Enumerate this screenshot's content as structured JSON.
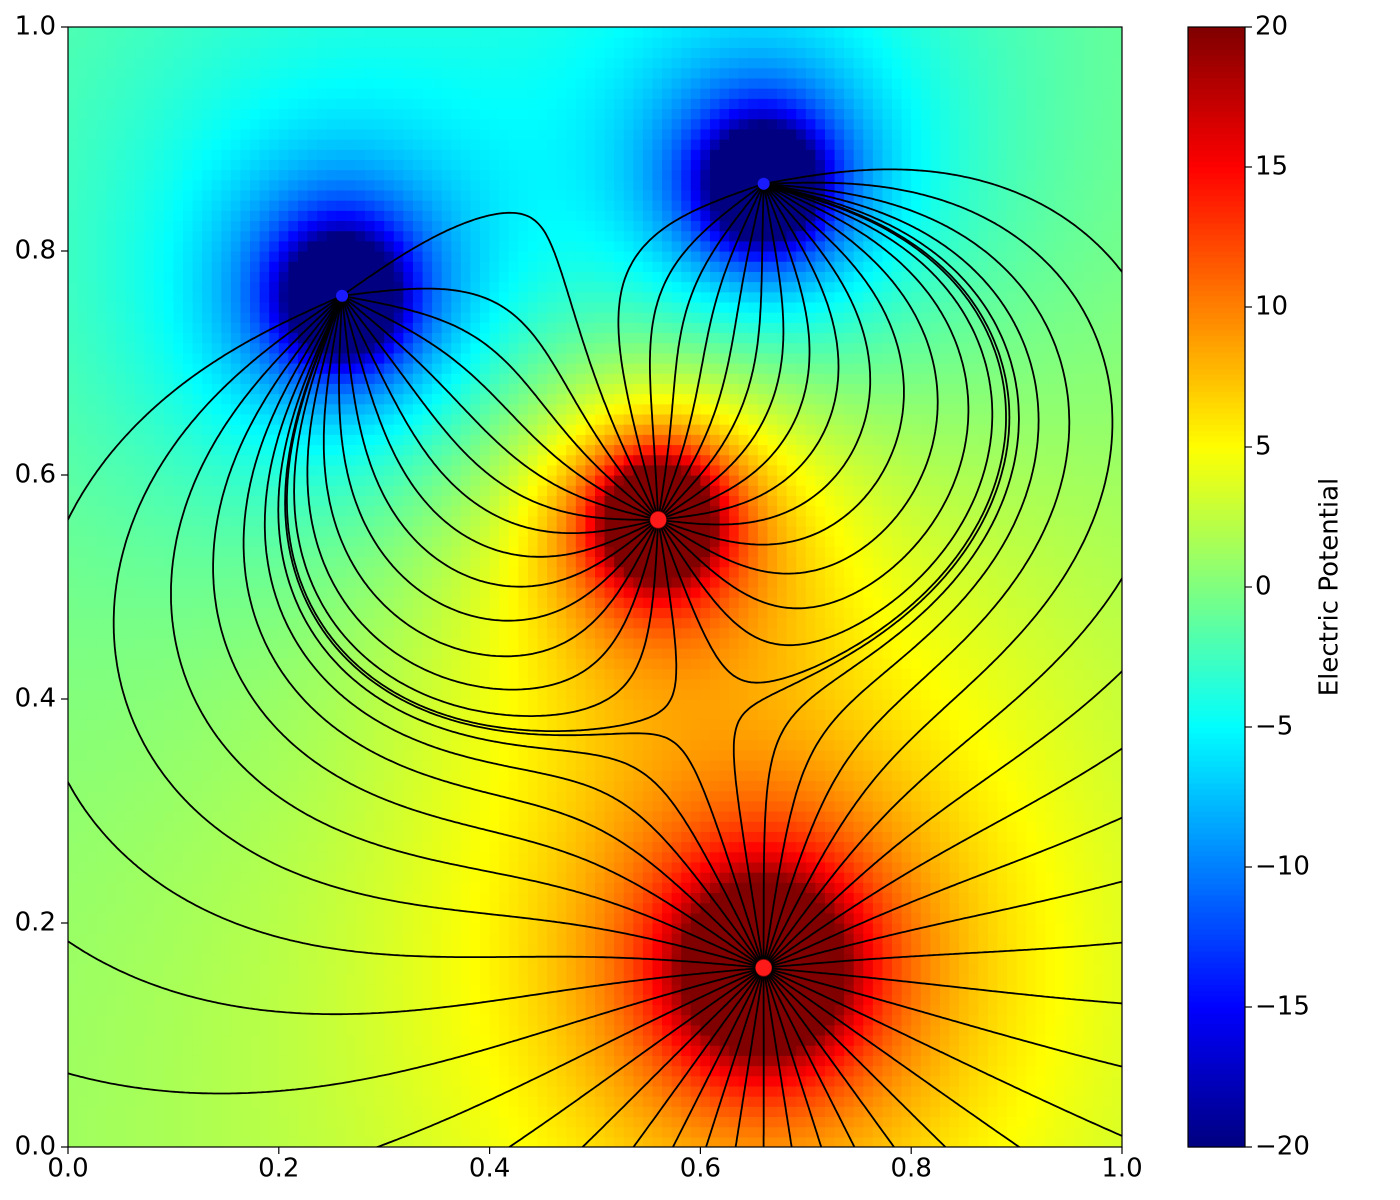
{
  "chart_data": {
    "type": "field",
    "colorbar_label": "Electric Potential",
    "colormap": "jet",
    "charges": [
      {
        "x": 0.26,
        "y": 0.76,
        "q": -1.2,
        "color": "#1a1aff"
      },
      {
        "x": 0.66,
        "y": 0.86,
        "q": -1.2,
        "color": "#1a1aff"
      },
      {
        "x": 0.56,
        "y": 0.56,
        "q": 1.2,
        "color": "#ff1a1a"
      },
      {
        "x": 0.66,
        "y": 0.16,
        "q": 1.6,
        "color": "#ff1a1a"
      }
    ],
    "xlim": [
      0,
      1
    ],
    "ylim": [
      0,
      1
    ],
    "xticks": [
      {
        "value": 0,
        "label": "0.0"
      },
      {
        "value": 0.2,
        "label": "0.2"
      },
      {
        "value": 0.4,
        "label": "0.4"
      },
      {
        "value": 0.6,
        "label": "0.6"
      },
      {
        "value": 0.8,
        "label": "0.8"
      },
      {
        "value": 1,
        "label": "1.0"
      }
    ],
    "yticks": [
      {
        "value": 0,
        "label": "0.0"
      },
      {
        "value": 0.2,
        "label": "0.2"
      },
      {
        "value": 0.4,
        "label": "0.4"
      },
      {
        "value": 0.6,
        "label": "0.6"
      },
      {
        "value": 0.8,
        "label": "0.8"
      },
      {
        "value": 1,
        "label": "1.0"
      }
    ],
    "clim": [
      -20,
      20
    ],
    "cticks": [
      {
        "value": -20,
        "label": "−20"
      },
      {
        "value": -15,
        "label": "−15"
      },
      {
        "value": -10,
        "label": "−10"
      },
      {
        "value": -5,
        "label": "−5"
      },
      0,
      5,
      10,
      15,
      20
    ],
    "field_line_color": "#000000"
  }
}
